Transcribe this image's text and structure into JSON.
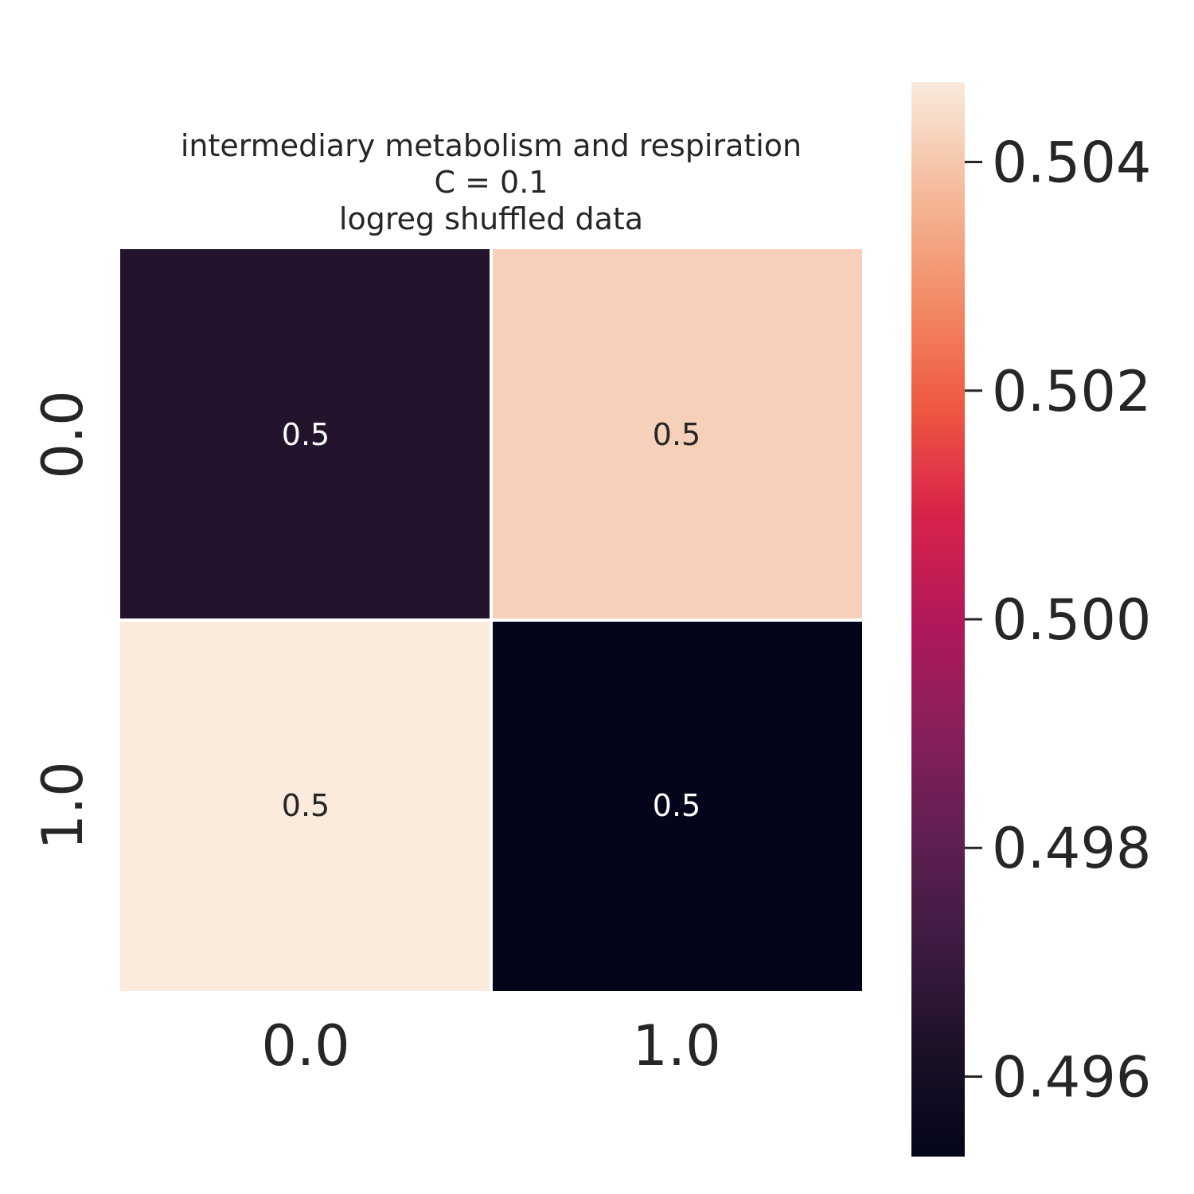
{
  "chart_data": {
    "type": "heatmap",
    "title_lines": [
      "intermediary metabolism and respiration",
      "C = 0.1",
      "logreg shuffled data"
    ],
    "x_ticks": [
      "0.0",
      "1.0"
    ],
    "y_ticks": [
      "0.0",
      "1.0"
    ],
    "values": [
      [
        0.49645,
        0.50418
      ],
      [
        0.5047,
        0.4953
      ]
    ],
    "annotations": [
      [
        "0.5",
        "0.5"
      ],
      [
        "0.5",
        "0.5"
      ]
    ],
    "colorbar": {
      "range": [
        0.4953,
        0.5047
      ],
      "ticks": [
        0.496,
        0.498,
        0.5,
        0.502,
        0.504
      ],
      "tick_labels": [
        "0.496",
        "0.498",
        "0.500",
        "0.502",
        "0.504"
      ]
    },
    "colormap": "rocket",
    "grid_line_color": "#ffffff"
  }
}
